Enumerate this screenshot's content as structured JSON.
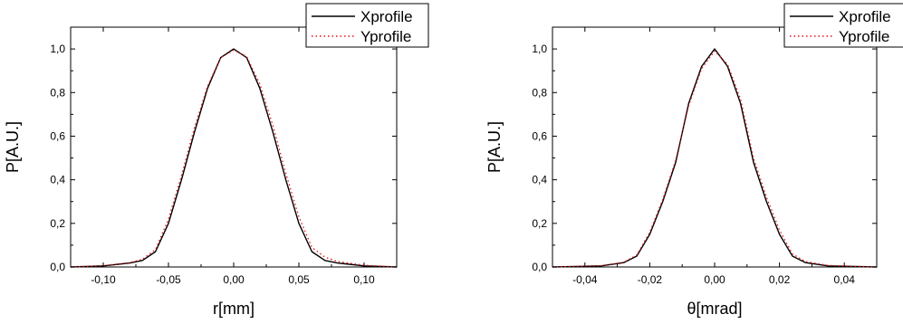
{
  "chart_data": [
    {
      "type": "line",
      "xlabel": "r[mm]",
      "ylabel": "P[A.U.]",
      "xlim": [
        -0.125,
        0.125
      ],
      "ylim": [
        0,
        1.1
      ],
      "xticks": [
        -0.1,
        -0.05,
        0.0,
        0.05,
        0.1
      ],
      "xtick_labels": [
        "-0,10",
        "-0,05",
        "0,00",
        "0,05",
        "0,10"
      ],
      "yticks": [
        0.0,
        0.2,
        0.4,
        0.6,
        0.8,
        1.0
      ],
      "ytick_labels": [
        "0,0",
        "0,2",
        "0,4",
        "0,6",
        "0,8",
        "1,0"
      ],
      "legend_position": "top-right",
      "series": [
        {
          "name": "Xprofile",
          "color": "#000000",
          "style": "solid",
          "x": [
            -0.125,
            -0.1,
            -0.08,
            -0.07,
            -0.06,
            -0.05,
            -0.04,
            -0.03,
            -0.02,
            -0.01,
            0.0,
            0.01,
            0.02,
            0.03,
            0.04,
            0.05,
            0.06,
            0.07,
            0.08,
            0.1,
            0.125
          ],
          "y": [
            0.0,
            0.005,
            0.018,
            0.03,
            0.07,
            0.2,
            0.4,
            0.62,
            0.82,
            0.96,
            1.0,
            0.96,
            0.82,
            0.62,
            0.4,
            0.2,
            0.07,
            0.03,
            0.018,
            0.005,
            0.0
          ]
        },
        {
          "name": "Yprofile",
          "color": "#e8101a",
          "style": "dotted",
          "x": [
            -0.125,
            -0.1,
            -0.08,
            -0.07,
            -0.06,
            -0.05,
            -0.04,
            -0.03,
            -0.02,
            -0.01,
            0.0,
            0.01,
            0.02,
            0.03,
            0.04,
            0.05,
            0.06,
            0.07,
            0.08,
            0.1,
            0.125
          ],
          "y": [
            0.0,
            0.006,
            0.02,
            0.035,
            0.08,
            0.22,
            0.42,
            0.64,
            0.83,
            0.96,
            0.995,
            0.965,
            0.84,
            0.65,
            0.43,
            0.23,
            0.09,
            0.045,
            0.025,
            0.008,
            0.0
          ]
        }
      ]
    },
    {
      "type": "line",
      "xlabel": "θ[mrad]",
      "ylabel": "P[A.U.]",
      "xlim": [
        -0.05,
        0.05
      ],
      "ylim": [
        0,
        1.1
      ],
      "xticks": [
        -0.04,
        -0.02,
        0.0,
        0.02,
        0.04
      ],
      "xtick_labels": [
        "-0,04",
        "-0,02",
        "0,00",
        "0,02",
        "0,04"
      ],
      "yticks": [
        0.0,
        0.2,
        0.4,
        0.6,
        0.8,
        1.0
      ],
      "ytick_labels": [
        "0,0",
        "0,2",
        "0,4",
        "0,6",
        "0,8",
        "1,0"
      ],
      "legend_position": "top-right",
      "series": [
        {
          "name": "Xprofile",
          "color": "#000000",
          "style": "solid",
          "x": [
            -0.05,
            -0.035,
            -0.028,
            -0.024,
            -0.02,
            -0.016,
            -0.012,
            -0.008,
            -0.004,
            0.0,
            0.004,
            0.008,
            0.012,
            0.016,
            0.02,
            0.024,
            0.028,
            0.035,
            0.05
          ],
          "y": [
            0.0,
            0.005,
            0.02,
            0.05,
            0.15,
            0.3,
            0.48,
            0.75,
            0.92,
            1.0,
            0.92,
            0.75,
            0.48,
            0.3,
            0.15,
            0.05,
            0.02,
            0.005,
            0.0
          ]
        },
        {
          "name": "Yprofile",
          "color": "#e8101a",
          "style": "dotted",
          "x": [
            -0.05,
            -0.035,
            -0.028,
            -0.024,
            -0.02,
            -0.016,
            -0.012,
            -0.008,
            -0.004,
            0.0,
            0.004,
            0.008,
            0.012,
            0.016,
            0.02,
            0.024,
            0.028,
            0.035,
            0.05
          ],
          "y": [
            0.0,
            0.006,
            0.022,
            0.055,
            0.16,
            0.31,
            0.49,
            0.74,
            0.91,
            0.99,
            0.93,
            0.77,
            0.5,
            0.32,
            0.17,
            0.06,
            0.025,
            0.007,
            0.0
          ]
        }
      ]
    }
  ]
}
